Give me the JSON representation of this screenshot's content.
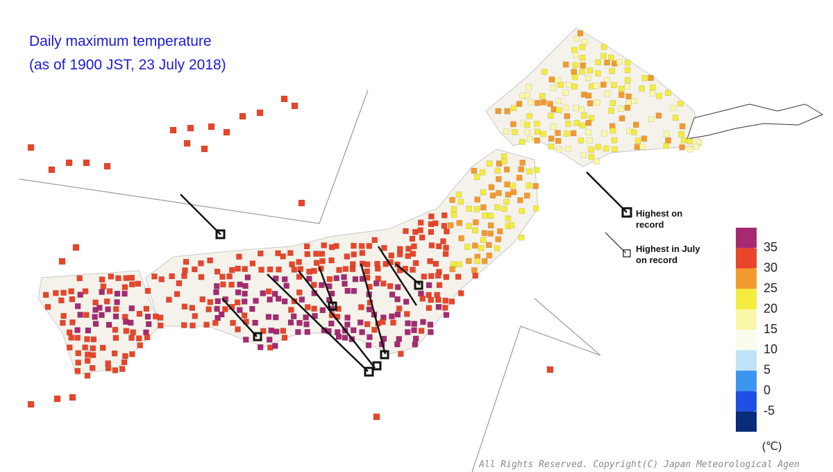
{
  "title": [
    "Daily maximum temperature",
    "(as of 1900 JST, 23 July 2018)"
  ],
  "marker_legend": [
    {
      "label": "Highest on record"
    },
    {
      "label": "Highest in July on record"
    }
  ],
  "colorbar": {
    "colors": [
      "#0a2a7a",
      "#1e50e6",
      "#3c96f0",
      "#bfe3f7",
      "#fbfbec",
      "#fbf7a8",
      "#f4ec3e",
      "#f39a2e",
      "#e8452a",
      "#a62a72"
    ],
    "ticks": [
      -5,
      0,
      5,
      10,
      15,
      20,
      25,
      30,
      35
    ],
    "unit": "(℃)"
  },
  "copyright": "All Rights Reserved. Copyright(C) Japan Meteorological Agen"
}
